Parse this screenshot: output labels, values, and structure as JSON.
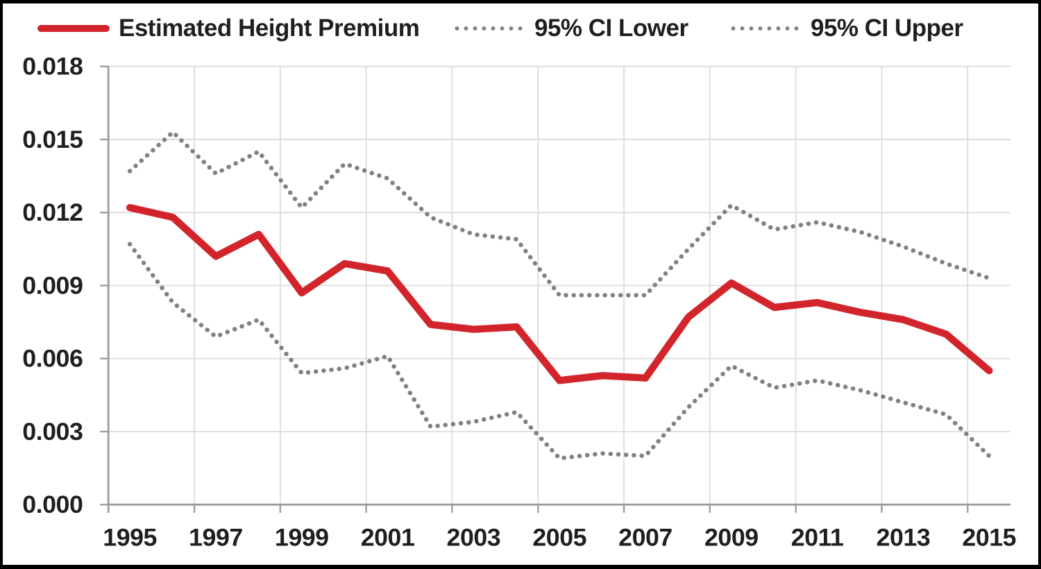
{
  "legend": {
    "items": [
      {
        "label": "Estimated Height Premium",
        "style": "solid",
        "color": "#d2252b"
      },
      {
        "label": "95% CI Lower",
        "style": "dotted",
        "color": "#818181"
      },
      {
        "label": "95% CI Upper",
        "style": "dotted",
        "color": "#818181"
      }
    ]
  },
  "chart_data": {
    "type": "line",
    "title": "",
    "xlabel": "",
    "ylabel": "",
    "x": [
      1995,
      1996,
      1997,
      1998,
      1999,
      2000,
      2001,
      2002,
      2003,
      2004,
      2005,
      2006,
      2007,
      2008,
      2009,
      2010,
      2011,
      2012,
      2013,
      2014,
      2015
    ],
    "x_tick_labels": [
      "1995",
      "1997",
      "1999",
      "2001",
      "2003",
      "2005",
      "2007",
      "2009",
      "2011",
      "2013",
      "2015"
    ],
    "y_tick_labels": [
      "0.000",
      "0.003",
      "0.006",
      "0.009",
      "0.012",
      "0.015",
      "0.018"
    ],
    "ylim": [
      0,
      0.018
    ],
    "grid": true,
    "legend_position": "top",
    "series": [
      {
        "name": "Estimated Height Premium",
        "style": "solid",
        "color": "#d2252b",
        "values": [
          0.0122,
          0.0118,
          0.0102,
          0.0111,
          0.0087,
          0.0099,
          0.0096,
          0.0074,
          0.0072,
          0.0073,
          0.0051,
          0.0053,
          0.0052,
          0.0077,
          0.0091,
          0.0081,
          0.0083,
          0.0079,
          0.0076,
          0.007,
          0.0055
        ]
      },
      {
        "name": "95% CI Lower",
        "style": "dotted",
        "color": "#818181",
        "values": [
          0.0107,
          0.0083,
          0.0069,
          0.0076,
          0.0054,
          0.0056,
          0.0061,
          0.0032,
          0.0034,
          0.0038,
          0.0019,
          0.0021,
          0.002,
          0.004,
          0.0057,
          0.0048,
          0.0051,
          0.0047,
          0.0042,
          0.0037,
          0.002
        ]
      },
      {
        "name": "95% CI Upper",
        "style": "dotted",
        "color": "#818181",
        "values": [
          0.0137,
          0.0153,
          0.0136,
          0.0145,
          0.0122,
          0.014,
          0.0134,
          0.0118,
          0.0111,
          0.0109,
          0.0086,
          0.0086,
          0.0086,
          0.0105,
          0.0123,
          0.0113,
          0.0116,
          0.0112,
          0.0106,
          0.0099,
          0.0093
        ]
      }
    ]
  },
  "colors": {
    "background": "#ffffff",
    "border": "#000000",
    "grid": "#d9d9d9",
    "axis": "#9c9c9c",
    "text": "#1f1f1f",
    "accent_red": "#d2252b",
    "ci_gray": "#818181"
  }
}
